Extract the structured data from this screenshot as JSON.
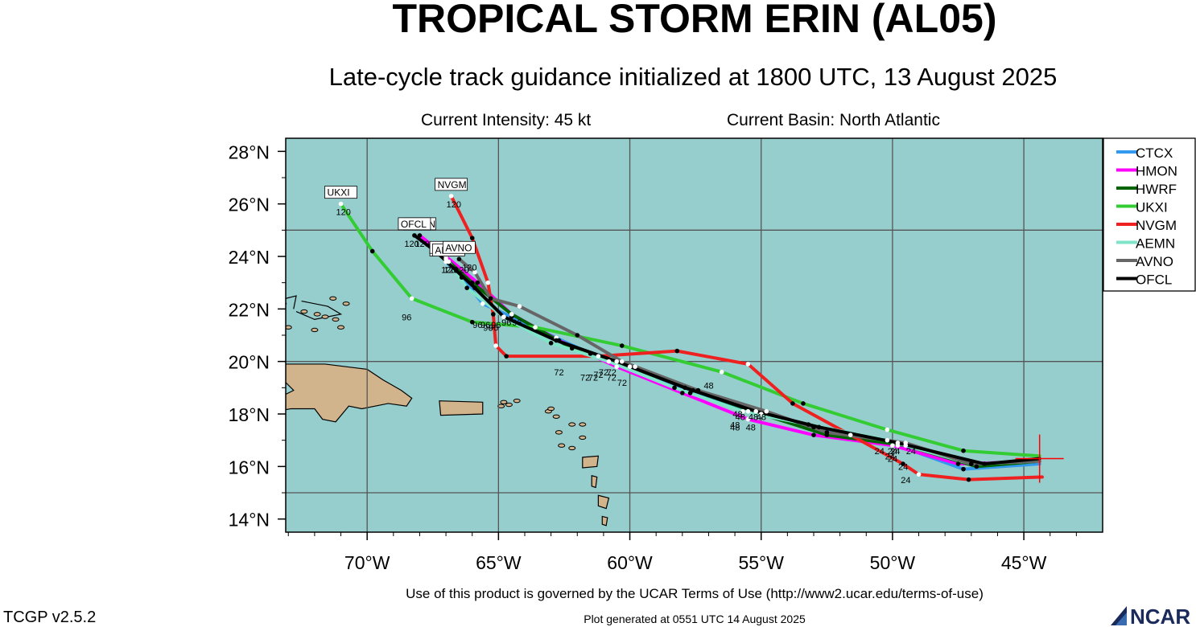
{
  "header": {
    "title": "TROPICAL STORM ERIN (AL05)",
    "subtitle": "Late-cycle track guidance initialized at 1800 UTC, 13 August 2025",
    "intensity": "Current Intensity: 45 kt",
    "basin": "Current Basin: North Atlantic"
  },
  "footer": {
    "terms": "Use of this product is governed by the UCAR Terms of Use (http://www2.ucar.edu/terms-of-use)",
    "version": "TCGP v2.5.2",
    "generated": "Plot generated at 0551 UTC   14 August 2025",
    "logo_text": "NCAR"
  },
  "colors": {
    "ocean": "#96cece",
    "land": "#d2b48c",
    "grid": "#555555",
    "current_marker": "#ff0000"
  },
  "chart_data": {
    "type": "scatter",
    "title": "TROPICAL STORM ERIN (AL05)",
    "xlim": [
      -73.1,
      -42.0
    ],
    "ylim": [
      13.5,
      28.5
    ],
    "x_ticks": [
      -70,
      -65,
      -60,
      -55,
      -50,
      -45
    ],
    "x_tick_labels": [
      "70°W",
      "65°W",
      "60°W",
      "55°W",
      "50°W",
      "45°W"
    ],
    "y_ticks": [
      14,
      16,
      18,
      20,
      22,
      24,
      26,
      28
    ],
    "y_tick_labels": [
      "14°N",
      "16°N",
      "18°N",
      "20°N",
      "22°N",
      "24°N",
      "26°N",
      "28°N"
    ],
    "grid": true,
    "legend_position": "top-right",
    "current_position": {
      "lon": -44.4,
      "lat": 16.3
    },
    "series": [
      {
        "name": "CTCX",
        "color": "#3399ee",
        "end_label": "CTCX",
        "end_hour": "120",
        "points": [
          [
            -44.4,
            16.1
          ],
          [
            -47.3,
            15.9
          ],
          [
            -49.8,
            16.8
          ],
          [
            -53.0,
            17.5
          ],
          [
            -55.5,
            18.1
          ],
          [
            -57.7,
            18.8
          ],
          [
            -59.8,
            19.8
          ],
          [
            -61.5,
            20.3
          ],
          [
            -62.8,
            20.9
          ],
          [
            -64.5,
            21.7
          ],
          [
            -65.6,
            22.2
          ],
          [
            -66.4,
            23.2
          ],
          [
            -67.0,
            23.8
          ]
        ],
        "labels": [
          [
            -49.3,
            16.9,
            "24"
          ],
          [
            -55.8,
            18.2,
            "48"
          ],
          [
            -60.7,
            19.9,
            "72"
          ],
          [
            -65.4,
            21.6,
            "96"
          ],
          [
            -67.0,
            23.8,
            "120"
          ]
        ]
      },
      {
        "name": "HMON",
        "color": "#ff00ff",
        "end_label": "HMON",
        "end_hour": "120",
        "points": [
          [
            -44.4,
            16.2
          ],
          [
            -47.5,
            16.1
          ],
          [
            -50.0,
            16.8
          ],
          [
            -53.0,
            17.2
          ],
          [
            -55.5,
            17.8
          ],
          [
            -58.0,
            18.8
          ],
          [
            -60.5,
            19.8
          ],
          [
            -62.7,
            20.8
          ],
          [
            -64.5,
            21.8
          ],
          [
            -65.8,
            23.0
          ],
          [
            -67.0,
            24.0
          ],
          [
            -68.0,
            24.8
          ]
        ],
        "labels": [
          [
            -49.6,
            16.3,
            "24"
          ],
          [
            -56.0,
            17.8,
            "48"
          ],
          [
            -60.3,
            19.5,
            "72"
          ],
          [
            -65.5,
            21.7,
            "96"
          ],
          [
            -68.0,
            24.8,
            "120"
          ]
        ]
      },
      {
        "name": "HWRF",
        "color": "#006400",
        "end_label": "HWRF",
        "end_hour": "120",
        "points": [
          [
            -44.4,
            16.2
          ],
          [
            -46.8,
            16.0
          ],
          [
            -49.5,
            16.8
          ],
          [
            -52.5,
            17.2
          ],
          [
            -55.0,
            18.0
          ],
          [
            -57.6,
            18.9
          ],
          [
            -60.0,
            19.8
          ],
          [
            -62.2,
            20.5
          ],
          [
            -64.5,
            21.8
          ],
          [
            -66.0,
            23.0
          ],
          [
            -67.0,
            23.9
          ]
        ],
        "labels": [
          [
            -50.0,
            16.9,
            "24"
          ],
          [
            -55.4,
            17.8,
            "48"
          ],
          [
            -61.4,
            19.7,
            "72"
          ],
          [
            -65.1,
            21.7,
            "96"
          ],
          [
            -66.5,
            23.8,
            "120"
          ]
        ]
      },
      {
        "name": "UKXI",
        "color": "#33cc33",
        "end_label": "UKXI",
        "end_hour": "120",
        "points": [
          [
            -44.4,
            16.4
          ],
          [
            -47.3,
            16.6
          ],
          [
            -50.2,
            17.4
          ],
          [
            -53.4,
            18.4
          ],
          [
            -56.5,
            19.6
          ],
          [
            -60.3,
            20.6
          ],
          [
            -63.6,
            21.3
          ],
          [
            -66.0,
            21.5
          ],
          [
            -68.3,
            22.4
          ],
          [
            -69.8,
            24.2
          ],
          [
            -71.0,
            26.0
          ]
        ],
        "labels": [
          [
            -50.5,
            16.9,
            "24"
          ],
          [
            -57.0,
            19.4,
            "48"
          ],
          [
            -61.0,
            19.9,
            "72"
          ],
          [
            -68.5,
            22.0,
            "96"
          ],
          [
            -71.0,
            26.0,
            "120"
          ]
        ]
      },
      {
        "name": "NVGM",
        "color": "#ee2020",
        "end_label": "NVGM",
        "end_hour": "120",
        "points": [
          [
            -44.3,
            15.6
          ],
          [
            -47.1,
            15.5
          ],
          [
            -49.0,
            15.7
          ],
          [
            -49.6,
            16.1
          ],
          [
            -51.6,
            17.2
          ],
          [
            -53.8,
            18.4
          ],
          [
            -55.5,
            19.9
          ],
          [
            -58.2,
            20.4
          ],
          [
            -61.2,
            20.2
          ],
          [
            -64.7,
            20.2
          ],
          [
            -65.1,
            20.6
          ],
          [
            -65.2,
            21.8
          ],
          [
            -65.4,
            23.0
          ],
          [
            -66.0,
            24.7
          ],
          [
            -66.8,
            26.3
          ]
        ],
        "labels": [
          [
            -49.5,
            15.8,
            "24"
          ],
          [
            -55.0,
            18.2,
            "48"
          ],
          [
            -62.7,
            19.9,
            "72"
          ],
          [
            -65.2,
            21.6,
            "96"
          ],
          [
            -66.8,
            26.3,
            "120"
          ]
        ]
      },
      {
        "name": "AEMN",
        "color": "#7fe5c8",
        "end_label": "AEMN",
        "end_hour": "120",
        "points": [
          [
            -44.4,
            16.2
          ],
          [
            -47.0,
            16.1
          ],
          [
            -50.2,
            17.0
          ],
          [
            -53.2,
            17.6
          ],
          [
            -55.7,
            18.1
          ],
          [
            -58.3,
            19.0
          ],
          [
            -60.8,
            20.0
          ],
          [
            -63.0,
            20.7
          ],
          [
            -64.8,
            21.7
          ],
          [
            -66.2,
            22.8
          ],
          [
            -66.9,
            23.8
          ]
        ],
        "labels": [
          [
            -50.0,
            16.6,
            "24"
          ],
          [
            -56.0,
            17.9,
            "48"
          ],
          [
            -60.7,
            19.7,
            "72"
          ],
          [
            -65.8,
            21.7,
            "96"
          ],
          [
            -66.9,
            23.8,
            "120"
          ]
        ]
      },
      {
        "name": "AVNO",
        "color": "#666666",
        "end_label": "AVNO",
        "end_hour": "120",
        "points": [
          [
            -44.4,
            16.2
          ],
          [
            -47.0,
            16.1
          ],
          [
            -49.5,
            16.9
          ],
          [
            -52.5,
            17.3
          ],
          [
            -54.8,
            18.1
          ],
          [
            -57.4,
            18.9
          ],
          [
            -60.3,
            20.0
          ],
          [
            -62.0,
            21.0
          ],
          [
            -64.2,
            22.1
          ],
          [
            -65.3,
            22.4
          ],
          [
            -65.9,
            23.4
          ],
          [
            -66.5,
            23.9
          ]
        ],
        "labels": [
          [
            -50.1,
            16.7,
            "24"
          ],
          [
            -55.3,
            18.2,
            "48"
          ],
          [
            -61.2,
            19.8,
            "72"
          ],
          [
            -64.7,
            21.8,
            "96"
          ],
          [
            -66.2,
            23.9,
            "120"
          ]
        ]
      },
      {
        "name": "OFCL",
        "color": "#000000",
        "end_label": "OFCL",
        "end_hour": "120",
        "points": [
          [
            -44.4,
            16.3
          ],
          [
            -46.5,
            16.1
          ],
          [
            -49.8,
            16.9
          ],
          [
            -52.8,
            17.5
          ],
          [
            -55.2,
            18.1
          ],
          [
            -57.9,
            19.0
          ],
          [
            -60.5,
            20.0
          ],
          [
            -62.8,
            20.8
          ],
          [
            -64.8,
            21.7
          ],
          [
            -65.9,
            22.8
          ],
          [
            -67.4,
            24.2
          ],
          [
            -68.2,
            24.8
          ]
        ],
        "labels": [
          [
            -49.9,
            16.9,
            "24"
          ],
          [
            -55.9,
            18.3,
            "48"
          ],
          [
            -61.7,
            19.7,
            "72"
          ],
          [
            -64.3,
            21.8,
            "96"
          ],
          [
            -68.4,
            24.8,
            "120"
          ]
        ]
      }
    ]
  },
  "map": {
    "land": [
      {
        "name": "hispaniola",
        "points": [
          [
            -74.5,
            19.8
          ],
          [
            -73.2,
            19.9
          ],
          [
            -72.2,
            19.9
          ],
          [
            -71.6,
            19.9
          ],
          [
            -70.8,
            19.8
          ],
          [
            -70.0,
            19.7
          ],
          [
            -69.4,
            19.3
          ],
          [
            -68.7,
            18.9
          ],
          [
            -68.3,
            18.6
          ],
          [
            -68.5,
            18.3
          ],
          [
            -69.2,
            18.4
          ],
          [
            -70.2,
            18.2
          ],
          [
            -70.7,
            18.3
          ],
          [
            -71.2,
            17.7
          ],
          [
            -71.7,
            17.8
          ],
          [
            -72.0,
            18.2
          ],
          [
            -72.9,
            18.2
          ],
          [
            -74.0,
            18.0
          ],
          [
            -74.5,
            18.4
          ],
          [
            -73.4,
            18.6
          ],
          [
            -72.8,
            18.9
          ],
          [
            -73.5,
            19.6
          ]
        ]
      },
      {
        "name": "puerto-rico",
        "points": [
          [
            -67.25,
            18.5
          ],
          [
            -65.6,
            18.45
          ],
          [
            -65.6,
            18.0
          ],
          [
            -67.2,
            17.95
          ]
        ]
      },
      {
        "name": "guadeloupe",
        "points": [
          [
            -61.8,
            16.35
          ],
          [
            -61.2,
            16.4
          ],
          [
            -61.25,
            16.0
          ],
          [
            -61.8,
            15.95
          ]
        ]
      },
      {
        "name": "martinique",
        "points": [
          [
            -61.2,
            14.9
          ],
          [
            -60.8,
            14.8
          ],
          [
            -60.9,
            14.4
          ],
          [
            -61.2,
            14.5
          ]
        ]
      },
      {
        "name": "st-lucia",
        "points": [
          [
            -61.05,
            14.1
          ],
          [
            -60.85,
            14.05
          ],
          [
            -60.9,
            13.75
          ],
          [
            -61.05,
            13.8
          ]
        ]
      },
      {
        "name": "dominica",
        "points": [
          [
            -61.45,
            15.65
          ],
          [
            -61.25,
            15.6
          ],
          [
            -61.3,
            15.2
          ],
          [
            -61.45,
            15.25
          ]
        ]
      }
    ],
    "islets": [
      [
        -71.9,
        21.8
      ],
      [
        -71.6,
        21.7
      ],
      [
        -71.2,
        21.6
      ],
      [
        -72.4,
        21.9
      ],
      [
        -71.0,
        21.3
      ],
      [
        -72.0,
        21.2
      ],
      [
        -73.0,
        21.3
      ],
      [
        -64.8,
        18.45
      ],
      [
        -64.6,
        18.35
      ],
      [
        -64.3,
        18.5
      ],
      [
        -64.9,
        18.3
      ],
      [
        -63.1,
        18.1
      ],
      [
        -63.0,
        18.2
      ],
      [
        -62.8,
        17.9
      ],
      [
        -62.7,
        17.3
      ],
      [
        -61.8,
        17.1
      ],
      [
        -62.2,
        17.6
      ],
      [
        -61.8,
        17.6
      ],
      [
        -62.6,
        16.8
      ],
      [
        -62.2,
        16.7
      ],
      [
        -71.3,
        22.4
      ],
      [
        -70.8,
        22.2
      ],
      [
        -73.2,
        22.2
      ]
    ],
    "outlines": [
      [
        [
          -72.5,
          22.3
        ],
        [
          -71.5,
          22.1
        ],
        [
          -71.0,
          21.8
        ],
        [
          -72.0,
          21.6
        ],
        [
          -72.7,
          21.9
        ]
      ],
      [
        [
          -73.1,
          22.4
        ],
        [
          -72.7,
          22.5
        ],
        [
          -72.8,
          22.0
        ]
      ]
    ]
  }
}
